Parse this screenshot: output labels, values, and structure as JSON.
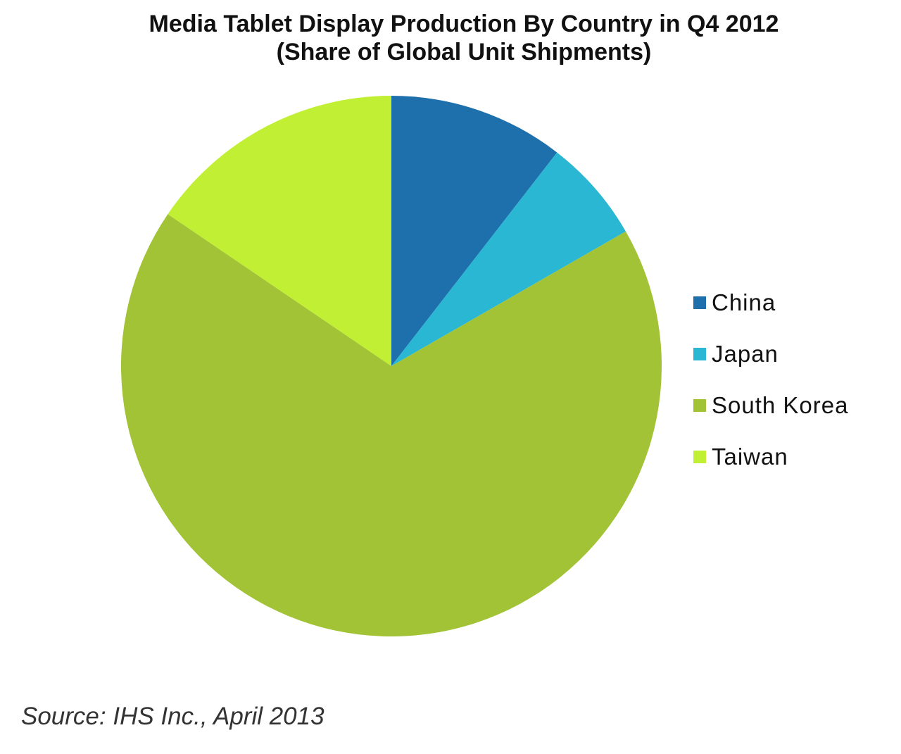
{
  "title": {
    "line1": "Media Tablet Display Production By Country in Q4 2012",
    "line2": "(Share of Global Unit Shipments)"
  },
  "chart_data": {
    "type": "pie",
    "title": "Media Tablet Display Production By Country in Q4 2012 (Share of Global Unit Shipments)",
    "categories": [
      "China",
      "Japan",
      "South Korea",
      "Taiwan"
    ],
    "values": [
      10.5,
      6.2,
      67.8,
      15.5
    ],
    "unit": "percent share of global unit shipments (estimated)",
    "colors": [
      "#1e70ad",
      "#2ab7d3",
      "#a1c335",
      "#c1ef34"
    ],
    "start_angle": "12 o'clock, clockwise",
    "legend_position": "right"
  },
  "legend": {
    "items": [
      {
        "label": "China",
        "color": "#1e70ad"
      },
      {
        "label": "Japan",
        "color": "#2ab7d3"
      },
      {
        "label": "South Korea",
        "color": "#a1c335"
      },
      {
        "label": "Taiwan",
        "color": "#c1ef34"
      }
    ]
  },
  "source": "Source: IHS Inc., April 2013"
}
